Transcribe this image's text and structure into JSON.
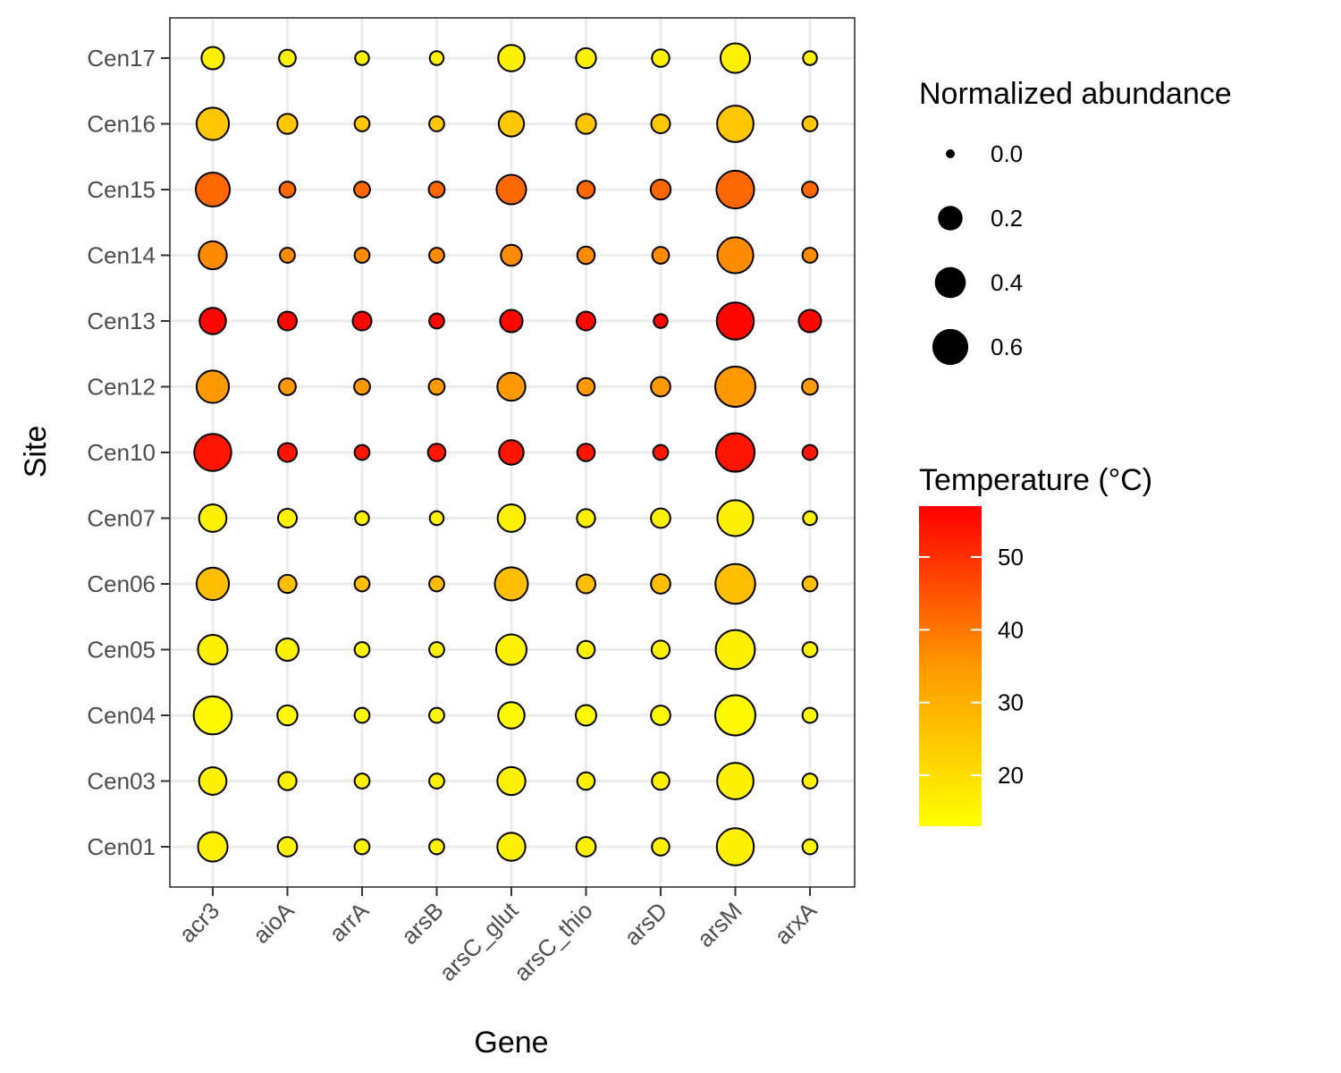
{
  "chart_data": {
    "type": "scatter",
    "xlabel": "Gene",
    "ylabel": "Site",
    "genes": [
      "acr3",
      "aioA",
      "arrA",
      "arsB",
      "arsC_glut",
      "arsC_thio",
      "arsD",
      "arsM",
      "arxA"
    ],
    "sites": [
      "Cen17",
      "Cen16",
      "Cen15",
      "Cen14",
      "Cen13",
      "Cen12",
      "Cen10",
      "Cen07",
      "Cen06",
      "Cen05",
      "Cen04",
      "Cen03",
      "Cen01"
    ],
    "grid": true,
    "legend_placement": "right",
    "size_legend": {
      "title": "Normalized abundance",
      "values": [
        0.0,
        0.2,
        0.4,
        0.6
      ],
      "labels": [
        "0.0",
        "0.2",
        "0.4",
        "0.6"
      ]
    },
    "color_legend": {
      "title": "Temperature (°C)",
      "range": [
        13,
        57
      ],
      "ticks": [
        20,
        30,
        40,
        50
      ],
      "tick_labels": [
        "20",
        "30",
        "40",
        "50"
      ],
      "color_low": "#FFFF00",
      "color_mid": "#FF9900",
      "color_high": "#FF0000"
    },
    "series": [
      {
        "site": "Cen17",
        "temperature": 16,
        "abundance": [
          0.15,
          0.05,
          0.02,
          0.02,
          0.25,
          0.1,
          0.06,
          0.35,
          0.02
        ]
      },
      {
        "site": "Cen16",
        "temperature": 25,
        "abundance": [
          0.45,
          0.1,
          0.03,
          0.03,
          0.22,
          0.1,
          0.08,
          0.62,
          0.03
        ]
      },
      {
        "site": "Cen15",
        "temperature": 42,
        "abundance": [
          0.52,
          0.04,
          0.04,
          0.04,
          0.35,
          0.06,
          0.1,
          0.68,
          0.04
        ]
      },
      {
        "site": "Cen14",
        "temperature": 37,
        "abundance": [
          0.3,
          0.03,
          0.03,
          0.03,
          0.12,
          0.06,
          0.05,
          0.6,
          0.03
        ]
      },
      {
        "site": "Cen13",
        "temperature": 56,
        "abundance": [
          0.25,
          0.08,
          0.08,
          0.03,
          0.15,
          0.08,
          0.02,
          0.65,
          0.15
        ]
      },
      {
        "site": "Cen12",
        "temperature": 35,
        "abundance": [
          0.45,
          0.05,
          0.04,
          0.04,
          0.3,
          0.06,
          0.09,
          0.8,
          0.04
        ]
      },
      {
        "site": "Cen10",
        "temperature": 54,
        "abundance": [
          0.65,
          0.08,
          0.03,
          0.06,
          0.2,
          0.06,
          0.03,
          0.72,
          0.03
        ]
      },
      {
        "site": "Cen07",
        "temperature": 16,
        "abundance": [
          0.28,
          0.08,
          0.02,
          0.02,
          0.28,
          0.07,
          0.09,
          0.6,
          0.02
        ]
      },
      {
        "site": "Cen06",
        "temperature": 27,
        "abundance": [
          0.45,
          0.07,
          0.03,
          0.03,
          0.48,
          0.08,
          0.09,
          0.78,
          0.03
        ]
      },
      {
        "site": "Cen05",
        "temperature": 16,
        "abundance": [
          0.35,
          0.15,
          0.03,
          0.03,
          0.38,
          0.06,
          0.07,
          0.75,
          0.03
        ]
      },
      {
        "site": "Cen04",
        "temperature": 14,
        "abundance": [
          0.7,
          0.1,
          0.03,
          0.03,
          0.25,
          0.11,
          0.09,
          0.8,
          0.03
        ]
      },
      {
        "site": "Cen03",
        "temperature": 16,
        "abundance": [
          0.28,
          0.07,
          0.03,
          0.03,
          0.3,
          0.06,
          0.06,
          0.62,
          0.03
        ]
      },
      {
        "site": "Cen01",
        "temperature": 16,
        "abundance": [
          0.35,
          0.09,
          0.03,
          0.03,
          0.3,
          0.09,
          0.06,
          0.65,
          0.03
        ]
      }
    ]
  }
}
